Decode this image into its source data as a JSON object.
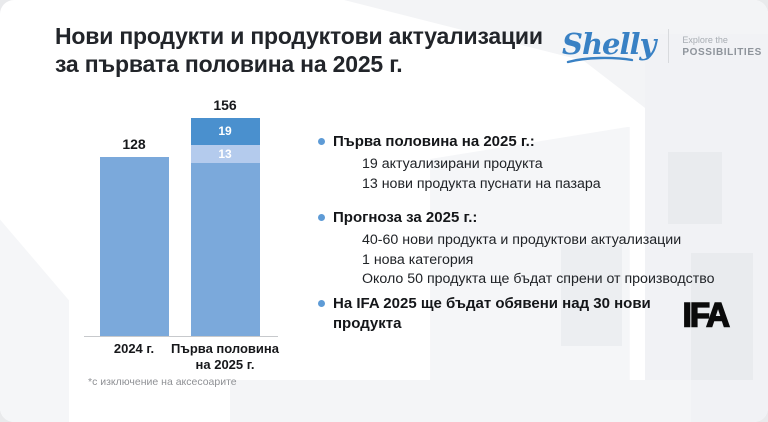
{
  "slide": {
    "title_line1": "Нови продукти и продуктови актуализации",
    "title_line2": "за първата половина на 2025 г.",
    "footnote": "*с изключение на аксесоарите"
  },
  "logo": {
    "brand": "Shelly",
    "tagline_line1": "Explore the",
    "tagline_line2": "POSSIBILITIES",
    "brand_color": "#3981c4"
  },
  "chart_data": {
    "type": "bar",
    "stacked": true,
    "grid": false,
    "legend": false,
    "ylim": [
      0,
      156
    ],
    "categories": [
      "2024 г.",
      "Първа половина на 2025 г."
    ],
    "bars": [
      {
        "category_lines": [
          "2024 г."
        ],
        "total": 128,
        "total_label": "128",
        "segments": [
          {
            "value": 128,
            "label": "",
            "color": "#7ba9db"
          }
        ]
      },
      {
        "category_lines": [
          "Първа половина",
          "на 2025 г."
        ],
        "total": 156,
        "total_label": "156",
        "segments": [
          {
            "value": 124,
            "label": "",
            "color": "#7ba9db"
          },
          {
            "value": 13,
            "label": "13",
            "color": "#b4cbed"
          },
          {
            "value": 19,
            "label": "19",
            "color": "#4a90ce"
          }
        ]
      }
    ]
  },
  "bullets": [
    {
      "heading": "Първа половина на 2025 г.:",
      "items": [
        "19 актуализирани продукта",
        "13 нови продукта пуснати на пазара"
      ]
    },
    {
      "heading": "Прогноза за 2025 г.:",
      "items": [
        "40-60 нови продукта и продуктови актуализации",
        "1 нова категория",
        "Около 50 продукта ще бъдат спрени от производство"
      ]
    },
    {
      "heading": "На IFA 2025 ще бъдат обявени над 30 нови продукта",
      "items": [],
      "logo": "IFA"
    }
  ],
  "colors": {
    "bar_blue": "#7ba9db",
    "bar_light_blue": "#b4cbed",
    "bar_dark_blue": "#4a90ce",
    "bullet_dot": "#5e9bd6",
    "brand_blue": "#3981c4"
  }
}
